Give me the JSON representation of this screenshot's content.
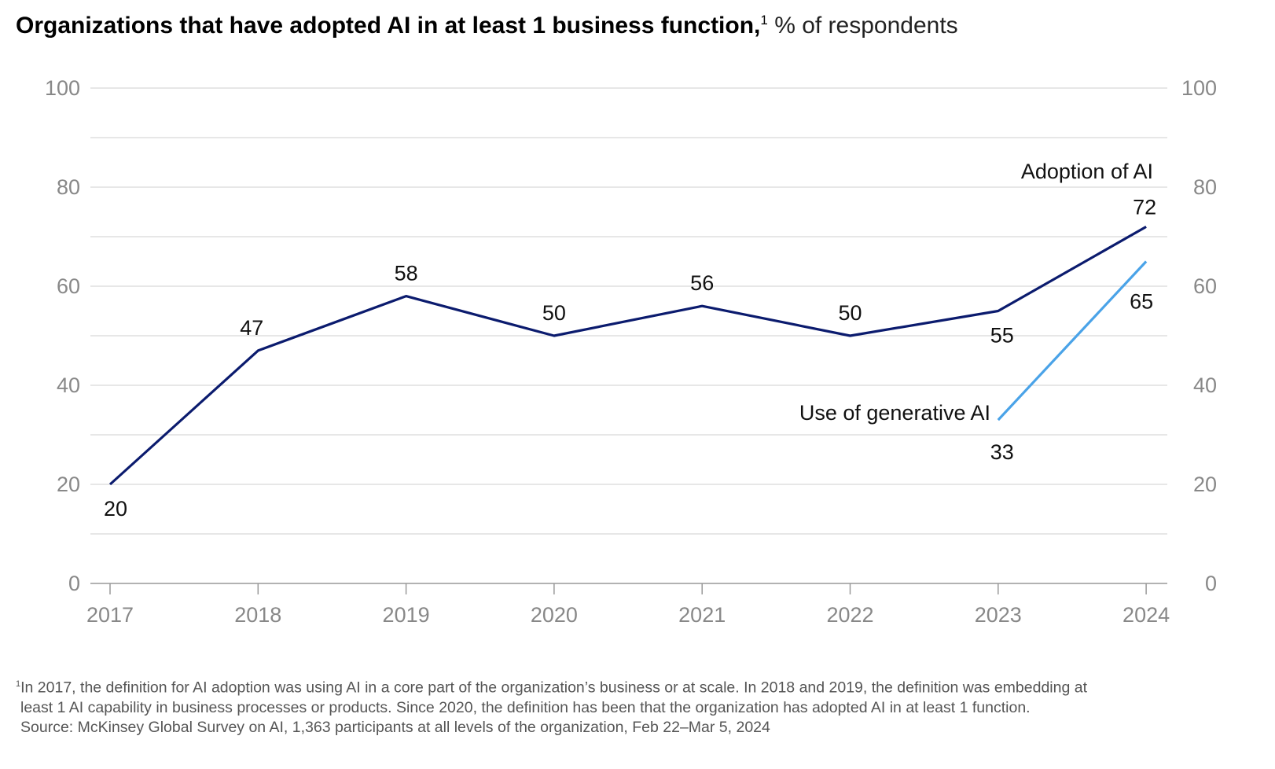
{
  "title": "Organizations that have adopted AI in at least 1 business function,",
  "title_footnote_mark": "1",
  "subtitle": "% of respondents",
  "footnote": {
    "mark": "1",
    "line1": "In 2017, the definition for AI adoption was using AI in a core part of the organization’s business or at scale. In 2018 and 2019, the definition was embedding at",
    "line2": "least 1 AI capability in business processes or products. Since 2020, the definition has been that the organization has adopted AI in at least 1 function.",
    "line3": "Source: McKinsey Global Survey on AI, 1,363 participants at all levels of the organization, Feb 22–Mar 5, 2024"
  },
  "chart_data": {
    "type": "line",
    "x": [
      "2017",
      "2018",
      "2019",
      "2020",
      "2021",
      "2022",
      "2023",
      "2024"
    ],
    "ylim": [
      0,
      100
    ],
    "y_ticks": [
      0,
      20,
      40,
      60,
      80,
      100
    ],
    "y_tick_labels": [
      "0",
      "20",
      "40",
      "60",
      "80",
      "100"
    ],
    "y_axis_both_sides": true,
    "grid": true,
    "series": [
      {
        "name": "Adoption of AI",
        "color": "#0b1b6e",
        "x": [
          "2017",
          "2018",
          "2019",
          "2020",
          "2021",
          "2022",
          "2023",
          "2024"
        ],
        "values": [
          20,
          47,
          58,
          50,
          56,
          50,
          55,
          72
        ],
        "labels": [
          "20",
          "47",
          "58",
          "50",
          "56",
          "50",
          "55",
          "72"
        ]
      },
      {
        "name": "Use of generative AI",
        "color": "#4aa3e8",
        "x": [
          "2023",
          "2024"
        ],
        "values": [
          33,
          65
        ],
        "labels": [
          "33",
          "65"
        ]
      }
    ]
  }
}
